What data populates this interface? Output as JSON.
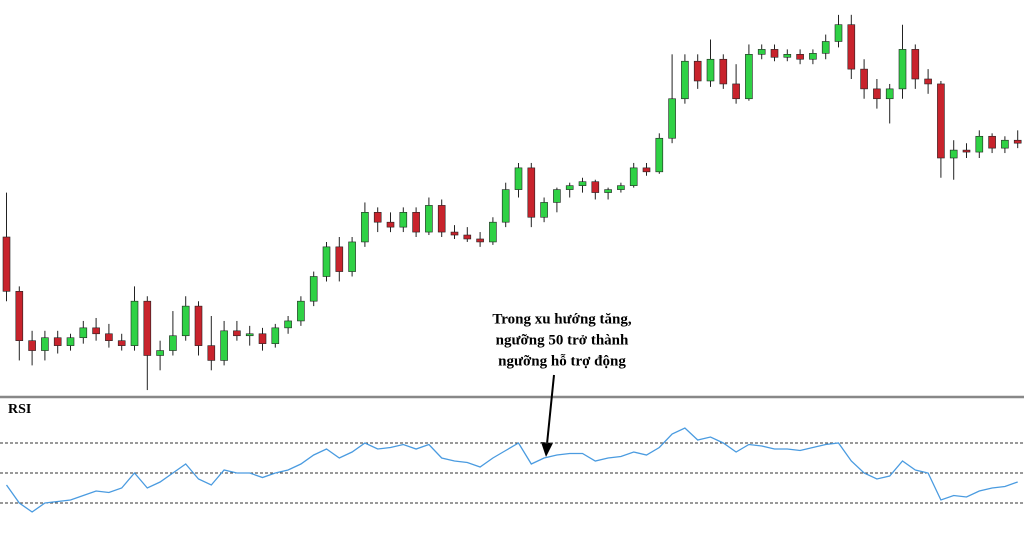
{
  "chart_data": [
    {
      "type": "candlestick",
      "open": [
        160,
        105,
        55,
        45,
        58,
        50,
        58,
        68,
        62,
        55,
        50,
        95,
        40,
        45,
        60,
        90,
        50,
        35,
        65,
        60,
        62,
        52,
        68,
        75,
        95,
        120,
        150,
        125,
        155,
        185,
        175,
        170,
        185,
        165,
        192,
        165,
        162,
        158,
        155,
        175,
        208,
        230,
        180,
        195,
        208,
        212,
        216,
        205,
        208,
        212,
        230,
        226,
        260,
        300,
        338,
        318,
        340,
        315,
        300,
        345,
        350,
        342,
        345,
        340,
        346,
        358,
        375,
        330,
        310,
        300,
        310,
        350,
        320,
        315,
        240,
        248,
        246,
        262,
        250,
        258
      ],
      "high": [
        205,
        110,
        65,
        65,
        65,
        62,
        75,
        78,
        72,
        62,
        110,
        100,
        55,
        85,
        100,
        95,
        80,
        75,
        75,
        70,
        68,
        72,
        80,
        100,
        125,
        155,
        160,
        160,
        195,
        190,
        185,
        190,
        190,
        200,
        198,
        172,
        170,
        165,
        180,
        215,
        235,
        235,
        200,
        210,
        215,
        220,
        218,
        210,
        215,
        235,
        235,
        265,
        345,
        345,
        345,
        360,
        345,
        335,
        355,
        355,
        355,
        350,
        350,
        350,
        365,
        385,
        385,
        340,
        320,
        315,
        375,
        355,
        330,
        318,
        258,
        255,
        268,
        265,
        262,
        268
      ],
      "low": [
        95,
        35,
        30,
        35,
        42,
        45,
        52,
        55,
        48,
        45,
        45,
        5,
        25,
        40,
        55,
        40,
        25,
        30,
        55,
        50,
        45,
        48,
        62,
        70,
        90,
        115,
        115,
        120,
        150,
        165,
        165,
        165,
        160,
        162,
        160,
        158,
        155,
        150,
        152,
        170,
        200,
        170,
        175,
        185,
        200,
        205,
        198,
        198,
        205,
        210,
        222,
        224,
        255,
        295,
        310,
        312,
        310,
        295,
        298,
        340,
        338,
        338,
        335,
        335,
        340,
        352,
        320,
        300,
        290,
        275,
        300,
        310,
        305,
        220,
        218,
        240,
        240,
        245,
        245,
        250
      ],
      "close": [
        105,
        55,
        45,
        58,
        50,
        58,
        68,
        62,
        55,
        50,
        95,
        40,
        45,
        60,
        90,
        50,
        35,
        65,
        60,
        62,
        52,
        68,
        75,
        95,
        120,
        150,
        125,
        155,
        185,
        175,
        170,
        185,
        165,
        192,
        165,
        162,
        158,
        155,
        175,
        208,
        230,
        180,
        195,
        208,
        212,
        216,
        205,
        208,
        212,
        230,
        226,
        260,
        300,
        338,
        318,
        340,
        315,
        300,
        345,
        350,
        342,
        345,
        340,
        346,
        358,
        375,
        330,
        310,
        300,
        310,
        350,
        320,
        315,
        240,
        248,
        246,
        262,
        250,
        258,
        255
      ],
      "up_color": "#2fd145",
      "down_color": "#c8232c",
      "ylim": [
        0,
        400
      ],
      "annotation": [
        "Trong xu hướng tăng,",
        "ngưỡng 50 trở thành",
        "ngưỡng hỗ trợ động"
      ]
    },
    {
      "type": "line",
      "title": "RSI",
      "values": [
        42,
        30,
        24,
        30,
        31,
        32,
        35,
        38,
        37,
        40,
        50,
        40,
        44,
        50,
        56,
        46,
        42,
        52,
        50,
        50,
        47,
        50,
        52,
        56,
        62,
        66,
        60,
        64,
        70,
        66,
        67,
        69,
        66,
        69,
        60,
        58,
        57,
        54,
        60,
        65,
        70,
        56,
        60,
        62,
        63,
        63,
        58,
        60,
        61,
        64,
        62,
        67,
        76,
        80,
        72,
        74,
        70,
        64,
        69,
        68,
        66,
        66,
        65,
        67,
        69,
        70,
        58,
        50,
        46,
        48,
        58,
        52,
        50,
        32,
        35,
        34,
        38,
        40,
        41,
        44
      ],
      "color": "#4a9be0",
      "ylim": [
        0,
        100
      ],
      "levels": [
        30,
        50,
        70
      ]
    }
  ]
}
